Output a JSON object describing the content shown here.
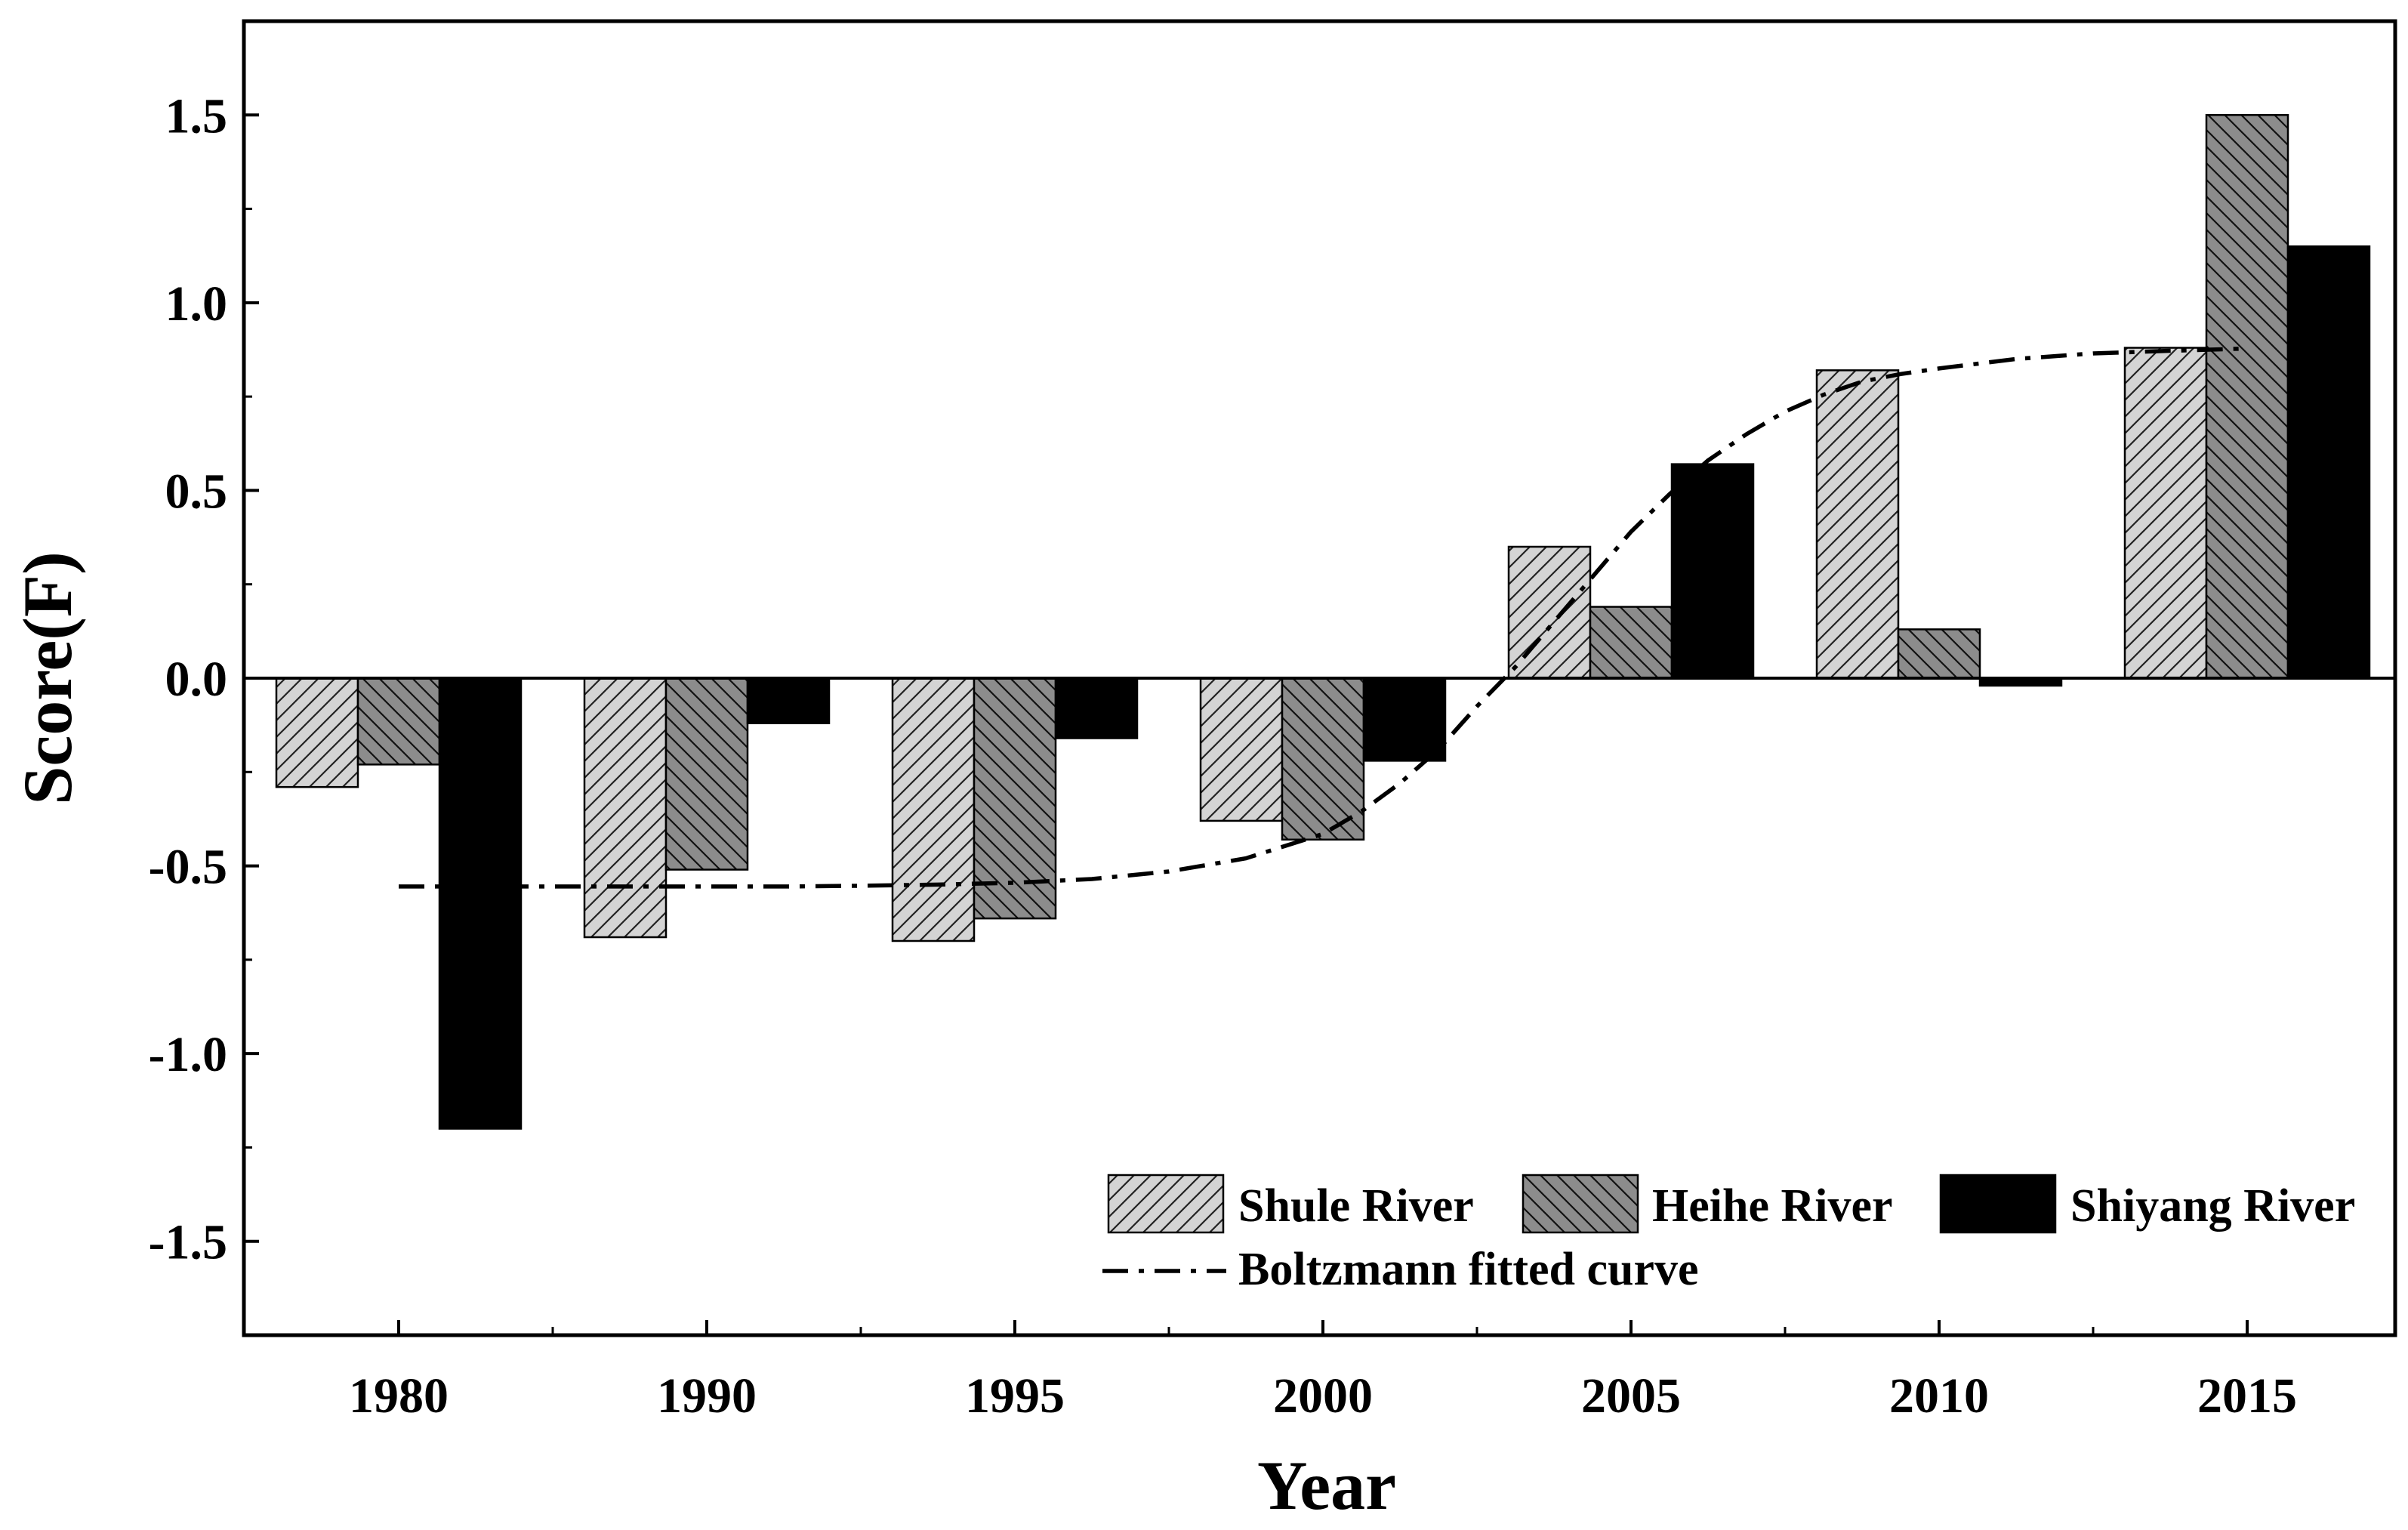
{
  "chart_data": {
    "type": "bar",
    "title": "",
    "xlabel": "Year",
    "ylabel": "Score(F)",
    "ylim": [
      -1.75,
      1.75
    ],
    "yticks": [
      -1.5,
      -1.0,
      -0.5,
      0.0,
      0.5,
      1.0,
      1.5
    ],
    "ytick_labels": [
      "-1.5",
      "-1.0",
      "-0.5",
      "0.0",
      "0.5",
      "1.0",
      "1.5"
    ],
    "categories": [
      "1980",
      "1990",
      "1995",
      "2000",
      "2005",
      "2010",
      "2015"
    ],
    "series": [
      {
        "name": "Shule River",
        "values": [
          -0.29,
          -0.69,
          -0.7,
          -0.38,
          0.35,
          0.82,
          0.88
        ],
        "fill": "#d4d4d4",
        "hatch": "forward"
      },
      {
        "name": "Heihe River",
        "values": [
          -0.23,
          -0.51,
          -0.64,
          -0.43,
          0.19,
          0.13,
          1.5
        ],
        "fill": "#8c8c8c",
        "hatch": "backward"
      },
      {
        "name": "Shiyang River",
        "values": [
          -1.2,
          -0.12,
          -0.16,
          -0.22,
          0.57,
          -0.02,
          1.15
        ],
        "fill": "#000000",
        "hatch": "none"
      }
    ],
    "fitted_curve": {
      "name": "Boltzmann fitted curve",
      "x": [
        0,
        0.25,
        0.5,
        0.75,
        1,
        1.25,
        1.5,
        1.75,
        2,
        2.25,
        2.5,
        2.75,
        3,
        3.125,
        3.25,
        3.375,
        3.5,
        3.625,
        3.75,
        3.875,
        4,
        4.125,
        4.25,
        4.375,
        4.5,
        4.625,
        4.75,
        4.875,
        5,
        5.25,
        5.5,
        5.75,
        6
      ],
      "y": [
        -0.555,
        -0.555,
        -0.555,
        -0.555,
        -0.555,
        -0.555,
        -0.553,
        -0.55,
        -0.545,
        -0.535,
        -0.515,
        -0.48,
        -0.415,
        -0.355,
        -0.28,
        -0.19,
        -0.075,
        0.03,
        0.15,
        0.27,
        0.39,
        0.49,
        0.58,
        0.65,
        0.71,
        0.755,
        0.79,
        0.81,
        0.825,
        0.85,
        0.865,
        0.872,
        0.878
      ]
    },
    "legend_position": "bottom-right",
    "grid": false
  }
}
